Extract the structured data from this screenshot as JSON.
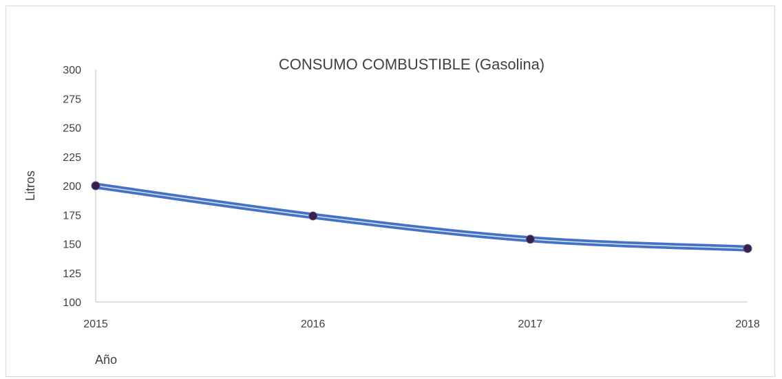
{
  "chart_data": {
    "type": "line",
    "title": "CONSUMO COMBUSTIBLE (Gasolina)",
    "xlabel": "Año",
    "ylabel": "Litros",
    "categories": [
      "2015",
      "2016",
      "2017",
      "2018"
    ],
    "series": [
      {
        "values": [
          200,
          174,
          154,
          146
        ],
        "color": "#4472c4",
        "marker_color": "#3b1f4a"
      }
    ],
    "ylim": [
      100,
      300
    ],
    "yticks": [
      100,
      125,
      150,
      175,
      200,
      225,
      250,
      275,
      300
    ],
    "yticklabels": [
      "100",
      "125",
      "150",
      "175",
      "200",
      "225",
      "250",
      "275",
      "300"
    ],
    "grid": false,
    "legend": "none"
  }
}
